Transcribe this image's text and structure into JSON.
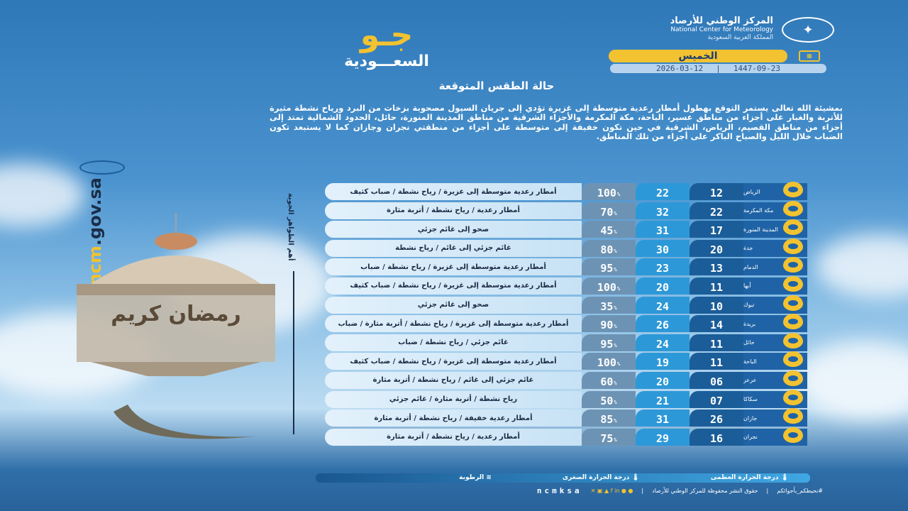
{
  "header": {
    "org_ar": "المركز الوطني للأرصاد",
    "org_en": "National Center for Meteorology",
    "org_sub": "المملكة العربية السعودية",
    "brand_main": "جـو",
    "brand_sub": "السعـــودية",
    "day": "الخميس",
    "date_gregorian": "2026-03-12",
    "date_hijri": "1447-09-23",
    "section_title": "حالة الطقس المتوقعة"
  },
  "intro": "بمشيئة الله تعالى يستمر التوقع بهطول أمطار رعدية متوسطة إلى غزيرة تؤدي إلى جريان السيول مصحوبة بزخات من البرد ورياح نشطة مثيرة للأتربة والغبار على أجزاء من مناطق عسير، الباحة، مكة المكرمة والأجزاء الشرقية من مناطق المدينة المنورة، حائل، الحدود الشمالية تمتد إلى أجزاء من مناطق القصيم، الرياض، الشرقية في حين تكون خفيفة إلى متوسطة على أجزاء من منطقتي نجران وجازان كما لا يستبعد تكون الضباب خلال الليل والصباح الباكر على أجزاء من تلك المناطق.",
  "side": {
    "phenomena_label": "أهم الظواهر الجوية",
    "site_a": "ncm",
    "site_b": ".gov.sa",
    "greeting": "رمضان كريم"
  },
  "rows": [
    {
      "city": "الرياض",
      "min": "12",
      "max": "22",
      "humidity": "100",
      "desc": "أمطار رعدية متوسطة إلى غزيرة / رياح نشطة / ضباب كثيف"
    },
    {
      "city": "مكة المكرمة",
      "min": "22",
      "max": "32",
      "humidity": "70",
      "desc": "أمطار رعدية / رياح نشطة / أتربة مثارة"
    },
    {
      "city": "المدينة المنورة",
      "min": "17",
      "max": "31",
      "humidity": "45",
      "desc": "صحو إلى غائم جزئي"
    },
    {
      "city": "جدة",
      "min": "20",
      "max": "30",
      "humidity": "80",
      "desc": "غائم جزئي إلى غائم / رياح نشطة"
    },
    {
      "city": "الدمام",
      "min": "13",
      "max": "23",
      "humidity": "95",
      "desc": "أمطار رعدية متوسطة إلى غزيرة / رياح نشطة / ضباب"
    },
    {
      "city": "أبها",
      "min": "11",
      "max": "20",
      "humidity": "100",
      "desc": "أمطار رعدية متوسطة إلى غزيرة / رياح نشطة / ضباب كثيف"
    },
    {
      "city": "تبوك",
      "min": "10",
      "max": "24",
      "humidity": "35",
      "desc": "صحو إلى غائم جزئي"
    },
    {
      "city": "بريدة",
      "min": "14",
      "max": "26",
      "humidity": "90",
      "desc": "أمطار رعدية متوسطة إلى غزيرة / رياح نشطة / أتربة مثارة / ضباب"
    },
    {
      "city": "حائل",
      "min": "11",
      "max": "24",
      "humidity": "95",
      "desc": "غائم جزئي / رياح نشطة / ضباب"
    },
    {
      "city": "الباحة",
      "min": "11",
      "max": "19",
      "humidity": "100",
      "desc": "أمطار رعدية متوسطة إلى غزيرة / رياح نشطة / ضباب كثيف"
    },
    {
      "city": "عرعر",
      "min": "06",
      "max": "20",
      "humidity": "60",
      "desc": "غائم جزئي إلى غائم / رياح نشطة / أتربة مثارة"
    },
    {
      "city": "سكاكا",
      "min": "07",
      "max": "21",
      "humidity": "50",
      "desc": "رياح نشطة / أتربة مثارة / غائم جزئي"
    },
    {
      "city": "جازان",
      "min": "26",
      "max": "31",
      "humidity": "85",
      "desc": "أمطار رعدية خفيفة / رياح نشطة / أتربة مثارة"
    },
    {
      "city": "نجران",
      "min": "16",
      "max": "29",
      "humidity": "75",
      "desc": "أمطار رعدية / رياح نشطة / أتربة مثارة"
    }
  ],
  "legend": {
    "max": "درجة الحرارة العظمى",
    "min": "درجة الحرارة الصغرى",
    "humidity": "الرطوبة",
    "pct": "%"
  },
  "footer": {
    "hashtag": "#نحيطكم_بأجوائكم",
    "rights": "حقوق النشر محفوظة للمركز الوطني للأرصاد",
    "handle": "ncmksa"
  },
  "colors": {
    "accent": "#f2c230",
    "min_col": "#1b5d98",
    "max_col": "#2d98d8",
    "hum_col": "#6d93b4"
  }
}
